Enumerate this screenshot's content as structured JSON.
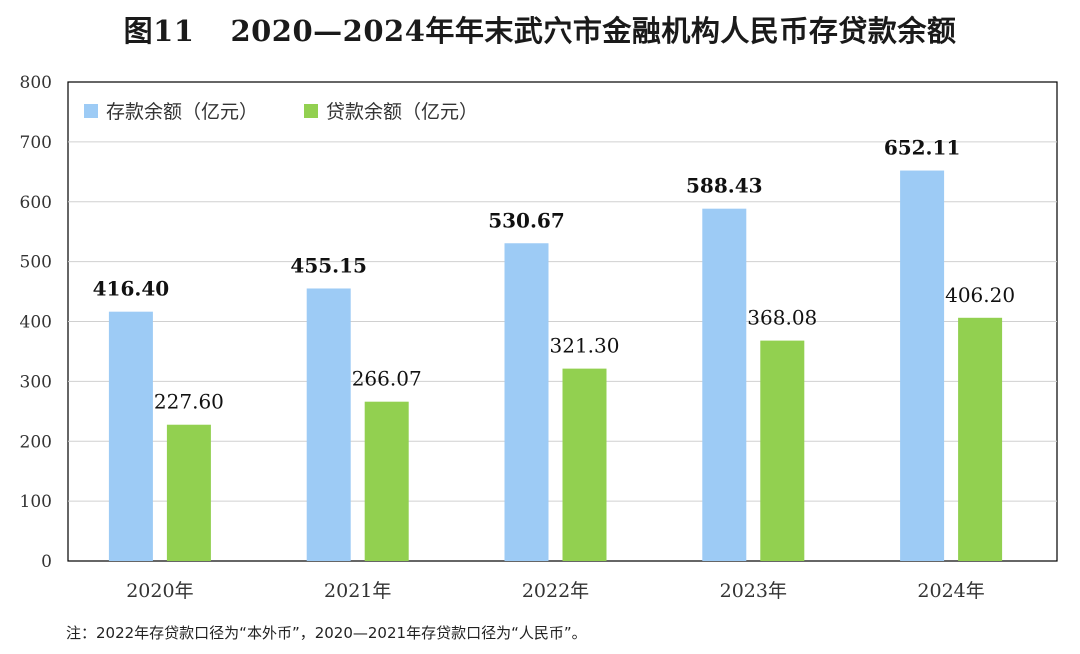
{
  "figure": {
    "number": "图11",
    "title": "2020—2024年年末武穴市金融机构人民币存贷款余额"
  },
  "chart_data": {
    "type": "bar",
    "title": "2020—2024年年末武穴市金融机构人民币存贷款余额",
    "categories": [
      "2020年",
      "2021年",
      "2022年",
      "2023年",
      "2024年"
    ],
    "series": [
      {
        "name": "存款余额（亿元）",
        "values": [
          416.4,
          455.15,
          530.67,
          588.43,
          652.11
        ],
        "labels": [
          "416.40",
          "455.15",
          "530.67",
          "588.43",
          "652.11"
        ],
        "color": "#9dcbf5",
        "label_bold": true
      },
      {
        "name": "贷款余额（亿元）",
        "values": [
          227.6,
          266.07,
          321.3,
          368.08,
          406.2
        ],
        "labels": [
          "227.60",
          "266.07",
          "321.30",
          "368.08",
          "406.20"
        ],
        "color": "#92d050",
        "label_bold": false
      }
    ],
    "yticks": [
      "0",
      "100",
      "200",
      "300",
      "400",
      "500",
      "600",
      "700",
      "800"
    ],
    "ylim": [
      0,
      800
    ],
    "grid": true,
    "legend_position": "top-left",
    "xlabel": "",
    "ylabel": ""
  },
  "note": "注：2022年存贷款口径为“本外币”，2020—2021年存贷款口径为“人民币”。"
}
